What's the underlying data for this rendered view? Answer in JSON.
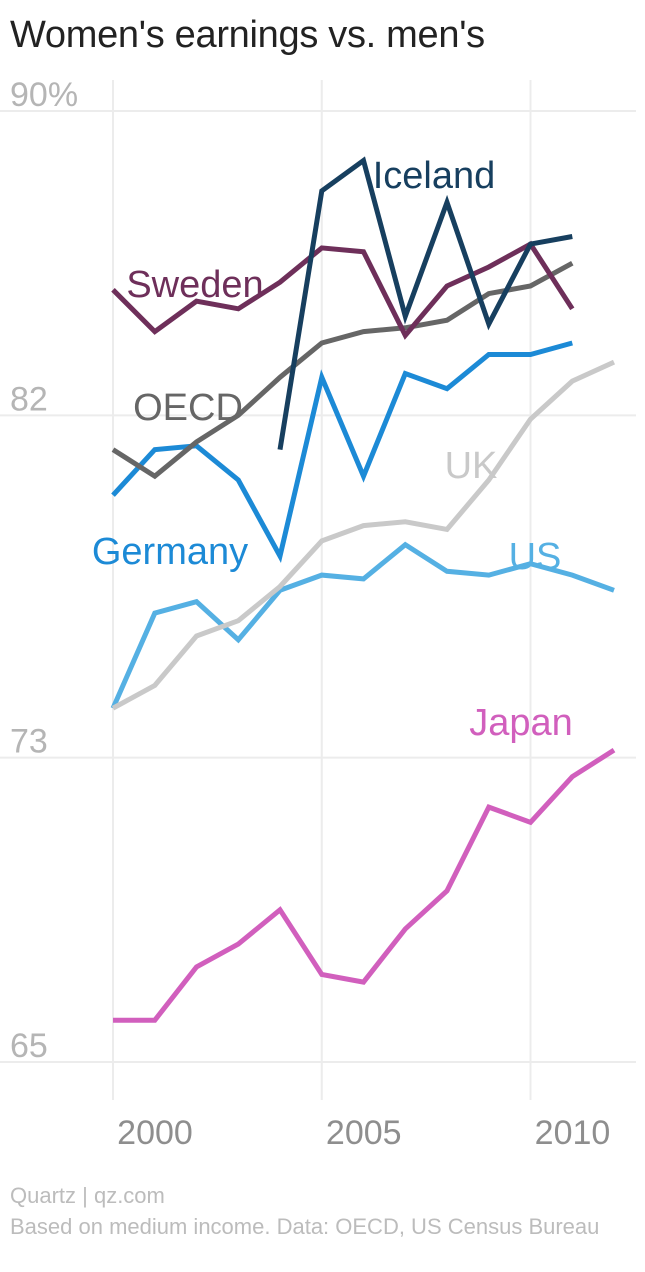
{
  "chart_data": {
    "type": "line",
    "title": "Women's earnings vs. men's",
    "xlabel": "",
    "ylabel": "",
    "ylim": [
      65,
      90
    ],
    "yticks": [
      90,
      82,
      73,
      65
    ],
    "ytick_labels": [
      "90%",
      "82",
      "73",
      "65"
    ],
    "xticks": [
      2000,
      2005,
      2010
    ],
    "xtick_labels": [
      "2000",
      "2005",
      "2010"
    ],
    "grid": true,
    "x": [
      2000,
      2001,
      2002,
      2003,
      2004,
      2005,
      2006,
      2007,
      2008,
      2009,
      2010,
      2011,
      2012
    ],
    "series": [
      {
        "name": "Iceland",
        "color": "#173f5f",
        "values": [
          null,
          null,
          null,
          null,
          81.1,
          87.9,
          88.7,
          84.6,
          87.6,
          84.4,
          86.5,
          86.7,
          null
        ]
      },
      {
        "name": "Sweden",
        "color": "#6e2f5a",
        "values": [
          85.3,
          84.2,
          85.0,
          84.8,
          85.5,
          86.4,
          86.3,
          84.1,
          85.4,
          85.9,
          86.5,
          84.8,
          null
        ]
      },
      {
        "name": "OECD",
        "color": "#666666",
        "values": [
          81.1,
          80.4,
          81.3,
          82.0,
          83.0,
          83.9,
          84.2,
          84.3,
          84.5,
          85.2,
          85.4,
          86.0,
          null
        ]
      },
      {
        "name": "Germany",
        "color": "#1c8ad6",
        "values": [
          79.9,
          81.1,
          81.2,
          80.3,
          78.3,
          83.0,
          80.4,
          83.1,
          82.7,
          83.6,
          83.6,
          83.9,
          null
        ]
      },
      {
        "name": "UK",
        "color": "#c9c9c9",
        "values": [
          74.3,
          74.9,
          76.2,
          76.6,
          77.5,
          78.7,
          79.1,
          79.2,
          79.0,
          80.3,
          81.9,
          82.9,
          83.4
        ]
      },
      {
        "name": "US",
        "color": "#55b0e3",
        "values": [
          74.3,
          76.8,
          77.1,
          76.1,
          77.4,
          77.8,
          77.7,
          78.6,
          77.9,
          77.8,
          78.1,
          77.8,
          77.4
        ]
      },
      {
        "name": "Japan",
        "color": "#d15fbd",
        "values": [
          66.1,
          66.1,
          67.5,
          68.1,
          69.0,
          67.3,
          67.1,
          68.5,
          69.5,
          71.7,
          71.3,
          72.5,
          73.2
        ]
      }
    ]
  },
  "footer": {
    "source": "Quartz | qz.com",
    "note": "Based on medium income. Data: OECD, US Census Bureau"
  }
}
